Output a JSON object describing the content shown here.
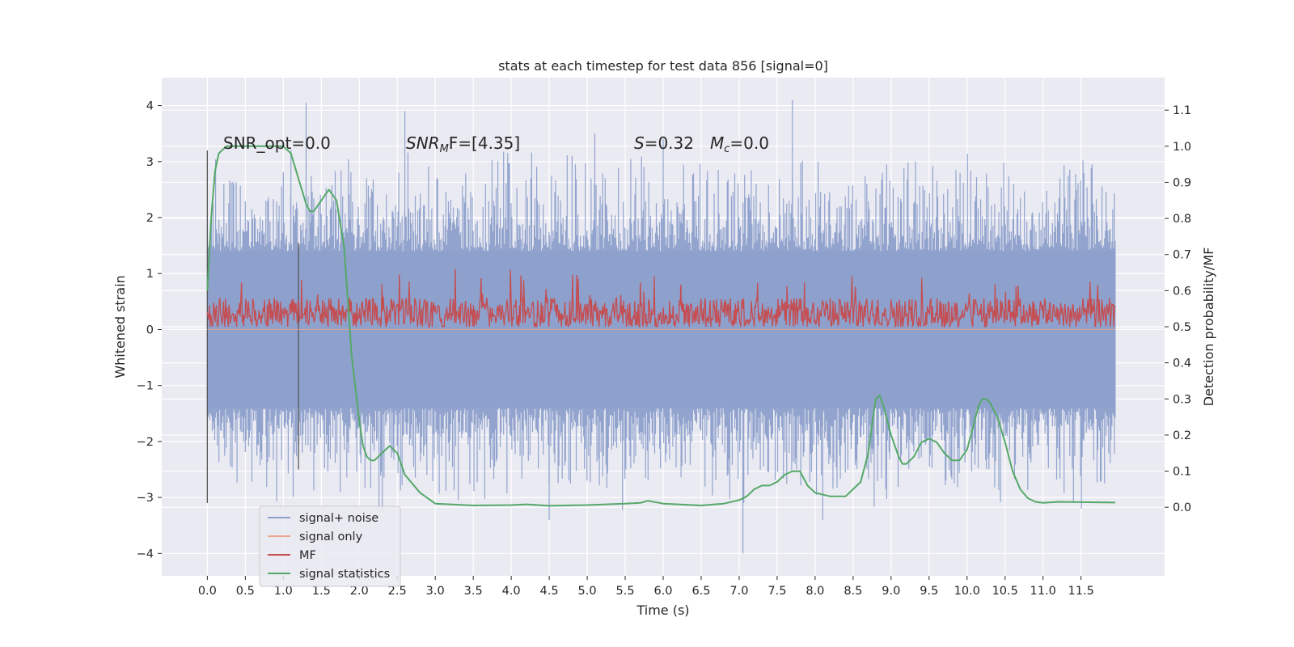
{
  "chart_data": {
    "type": "line",
    "title": "stats at each timestep for test data 856 [signal=0]",
    "xlabel": "Time (s)",
    "ylabel_left": "Whitened strain",
    "ylabel_right": "Detection probability/MF",
    "xlim": [
      -0.6,
      12.6
    ],
    "ylim_left": [
      -4.4,
      4.5
    ],
    "ylim_right": [
      -0.19,
      1.19
    ],
    "x_ticks": [
      "0.0",
      "0.5",
      "1.0",
      "1.5",
      "2.0",
      "2.5",
      "3.0",
      "3.5",
      "4.0",
      "4.5",
      "5.0",
      "5.5",
      "6.0",
      "6.5",
      "7.0",
      "7.5",
      "8.0",
      "8.5",
      "9.0",
      "9.5",
      "10.0",
      "10.5",
      "11.0",
      "11.5"
    ],
    "x_tick_values": [
      0,
      0.5,
      1,
      1.5,
      2,
      2.5,
      3,
      3.5,
      4,
      4.5,
      5,
      5.5,
      6,
      6.5,
      7,
      7.5,
      8,
      8.5,
      9,
      9.5,
      10,
      10.5,
      11,
      11.5
    ],
    "y_left_ticks": [
      "4",
      "3",
      "2",
      "1",
      "0",
      "−1",
      "−2",
      "−3",
      "−4"
    ],
    "y_left_tick_values": [
      4,
      3,
      2,
      1,
      0,
      -1,
      -2,
      -3,
      -4
    ],
    "y_right_ticks": [
      "1.1",
      "1.0",
      "0.9",
      "0.8",
      "0.7",
      "0.6",
      "0.5",
      "0.4",
      "0.3",
      "0.2",
      "0.1",
      "0.0"
    ],
    "y_right_tick_values": [
      1.1,
      1.0,
      0.9,
      0.8,
      0.7,
      0.6,
      0.5,
      0.4,
      0.3,
      0.2,
      0.1,
      0.0
    ],
    "grid": true,
    "legend_position": "lower-left",
    "annotations": {
      "snr_opt": "SNR_opt=0.0",
      "snr_mf_prefix": "SNR",
      "snr_mf_sub": "M",
      "snr_mf_rest": "F=[4.35]",
      "s_symbol": "S",
      "s_value": "=0.32",
      "mc_symbol": "M",
      "mc_sub": "c",
      "mc_value": "=0.0"
    },
    "vertical_markers": [
      {
        "x": 0.0,
        "y_range": [
          -3.1,
          3.2
        ]
      },
      {
        "x": 1.2,
        "y_range": [
          -2.5,
          1.55
        ]
      }
    ],
    "series": [
      {
        "name": "signal+ noise",
        "axis": "left",
        "color": "#8da0cb",
        "envelope_typical": [
          -1.4,
          1.4
        ],
        "extremes": [
          [
            1.3,
            4.05
          ],
          [
            2.6,
            3.9
          ],
          [
            7.7,
            4.1
          ],
          [
            7.05,
            -4.0
          ],
          [
            4.5,
            -3.4
          ],
          [
            8.1,
            -3.4
          ],
          [
            11.4,
            -3.1
          ],
          [
            1.1,
            3.2
          ],
          [
            6.0,
            3.4
          ],
          [
            5.1,
            3.5
          ]
        ],
        "x_range": [
          0,
          11.95
        ]
      },
      {
        "name": "signal only",
        "axis": "left",
        "color": "#e9a48b",
        "values_constant": 0
      },
      {
        "name": "MF",
        "axis": "right",
        "color": "#c44e52",
        "typical_range": [
          0.5,
          0.58
        ],
        "max": 0.66,
        "x_range": [
          0,
          11.95
        ]
      },
      {
        "name": "signal statistics",
        "axis": "right",
        "color": "#55a868",
        "x": [
          0.0,
          0.05,
          0.1,
          0.15,
          0.25,
          0.4,
          0.6,
          0.8,
          0.9,
          1.0,
          1.1,
          1.2,
          1.3,
          1.35,
          1.4,
          1.5,
          1.6,
          1.7,
          1.8,
          1.9,
          2.0,
          2.05,
          2.1,
          2.15,
          2.2,
          2.3,
          2.35,
          2.4,
          2.5,
          2.6,
          2.8,
          3.0,
          3.5,
          4.0,
          4.2,
          4.5,
          5.0,
          5.5,
          5.7,
          5.8,
          6.0,
          6.5,
          6.8,
          7.0,
          7.1,
          7.2,
          7.3,
          7.4,
          7.5,
          7.6,
          7.7,
          7.8,
          7.9,
          8.0,
          8.2,
          8.4,
          8.6,
          8.7,
          8.75,
          8.8,
          8.85,
          8.9,
          9.0,
          9.1,
          9.15,
          9.2,
          9.3,
          9.4,
          9.5,
          9.6,
          9.7,
          9.8,
          9.9,
          10.0,
          10.1,
          10.15,
          10.2,
          10.25,
          10.3,
          10.4,
          10.5,
          10.6,
          10.7,
          10.8,
          10.9,
          11.0,
          11.2,
          11.5,
          11.95
        ],
        "values": [
          0.6,
          0.8,
          0.93,
          0.98,
          1.0,
          1.0,
          1.0,
          1.0,
          1.0,
          1.0,
          0.98,
          0.91,
          0.84,
          0.82,
          0.82,
          0.85,
          0.88,
          0.85,
          0.72,
          0.42,
          0.24,
          0.17,
          0.14,
          0.13,
          0.13,
          0.15,
          0.16,
          0.17,
          0.15,
          0.09,
          0.04,
          0.01,
          0.005,
          0.006,
          0.008,
          0.004,
          0.006,
          0.01,
          0.012,
          0.018,
          0.01,
          0.005,
          0.01,
          0.02,
          0.03,
          0.05,
          0.06,
          0.06,
          0.07,
          0.09,
          0.1,
          0.1,
          0.06,
          0.04,
          0.03,
          0.03,
          0.07,
          0.15,
          0.23,
          0.3,
          0.31,
          0.28,
          0.2,
          0.14,
          0.12,
          0.12,
          0.14,
          0.18,
          0.19,
          0.18,
          0.15,
          0.13,
          0.13,
          0.16,
          0.24,
          0.28,
          0.3,
          0.3,
          0.29,
          0.25,
          0.18,
          0.1,
          0.05,
          0.025,
          0.015,
          0.012,
          0.015,
          0.014,
          0.013
        ]
      }
    ]
  }
}
